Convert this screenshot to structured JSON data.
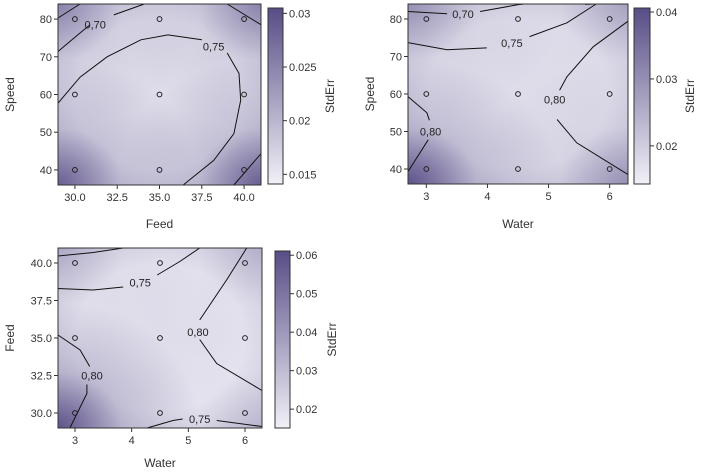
{
  "chart_data": [
    {
      "type": "heatmap",
      "subtype": "contour",
      "xlabel": "Feed",
      "ylabel": "Speed",
      "xlim": [
        29,
        41
      ],
      "ylim": [
        36,
        84
      ],
      "xticks": [
        "30.0",
        "32.5",
        "35.0",
        "37.5",
        "40.0"
      ],
      "xtick_values": [
        30,
        32.5,
        35,
        37.5,
        40
      ],
      "yticks": [
        "40",
        "50",
        "60",
        "70",
        "80"
      ],
      "ytick_values": [
        40,
        50,
        60,
        70,
        80
      ],
      "colorbar": {
        "label": "StdErr",
        "clim": [
          0.0141,
          0.0305
        ],
        "ticks": [
          "0.015",
          "0.02",
          "0.025",
          "0.03"
        ],
        "tick_values": [
          0.015,
          0.02,
          0.025,
          0.03
        ]
      },
      "design_points": [
        [
          30,
          40
        ],
        [
          35,
          40
        ],
        [
          40,
          40
        ],
        [
          30,
          60
        ],
        [
          35,
          60
        ],
        [
          40,
          60
        ],
        [
          30,
          80
        ],
        [
          35,
          80
        ],
        [
          40,
          80
        ]
      ],
      "contours": [
        {
          "level": "0,70",
          "lines": [
            [
              [
                29,
                71.4
              ],
              [
                30.3,
                76.3
              ],
              [
                30.9,
                78.5
              ]
            ],
            [
              [
                32.3,
                81.1
              ],
              [
                34.1,
                84
              ]
            ],
            [
              [
                29,
                80.3
              ],
              [
                30.3,
                84
              ]
            ],
            [
              [
                39,
                84
              ],
              [
                41,
                78.5
              ]
            ],
            [
              [
                39.4,
                36
              ],
              [
                41,
                44.3
              ]
            ]
          ],
          "labels": [
            [
              31.2,
              78.5
            ]
          ]
        },
        {
          "level": "0,75",
          "lines": [
            [
              [
                29,
                57.7
              ],
              [
                30.3,
                64.6
              ],
              [
                31.9,
                70
              ],
              [
                33.9,
                74.5
              ],
              [
                35.5,
                75.8
              ],
              [
                37.5,
                74.5
              ]
            ],
            [
              [
                39,
                71
              ],
              [
                39.7,
                65.6
              ],
              [
                39.8,
                58.5
              ],
              [
                39.4,
                49.6
              ],
              [
                38.2,
                42.5
              ],
              [
                36.4,
                36
              ]
            ]
          ],
          "labels": [
            [
              38.2,
              72.7
            ]
          ]
        }
      ],
      "gradient_colors": {
        "low": "#f1f0f7",
        "high": "#584d86"
      }
    },
    {
      "type": "heatmap",
      "subtype": "contour",
      "xlabel": "Water",
      "ylabel": "Speed",
      "xlim": [
        2.7,
        6.3
      ],
      "ylim": [
        36,
        84
      ],
      "xticks": [
        "3",
        "4",
        "5",
        "6"
      ],
      "xtick_values": [
        3,
        4,
        5,
        6
      ],
      "yticks": [
        "40",
        "50",
        "60",
        "70",
        "80"
      ],
      "ytick_values": [
        40,
        50,
        60,
        70,
        80
      ],
      "colorbar": {
        "label": "StdErr",
        "clim": [
          0.0143,
          0.0406
        ],
        "ticks": [
          "0.02",
          "0.03",
          "0.04"
        ],
        "tick_values": [
          0.02,
          0.03,
          0.04
        ]
      },
      "design_points": [
        [
          3,
          40
        ],
        [
          4.5,
          40
        ],
        [
          6,
          40
        ],
        [
          3,
          60
        ],
        [
          4.5,
          60
        ],
        [
          6,
          60
        ],
        [
          3,
          80
        ],
        [
          4.5,
          80
        ],
        [
          6,
          80
        ]
      ],
      "contours": [
        {
          "level": "0,70",
          "lines": [
            [
              [
                2.7,
                82
              ],
              [
                3.34,
                81.4
              ]
            ],
            [
              [
                3.88,
                82
              ],
              [
                4.49,
                83.8
              ],
              [
                4.6,
                84
              ]
            ],
            [
              [
                5.6,
                83.9
              ],
              [
                5.75,
                84
              ]
            ]
          ],
          "labels": [
            [
              3.6,
              81.4
            ]
          ]
        },
        {
          "level": "0,75",
          "lines": [
            [
              [
                2.7,
                73.7
              ],
              [
                3.34,
                71.8
              ],
              [
                3.99,
                72.3
              ]
            ],
            [
              [
                4.69,
                75.3
              ],
              [
                5.3,
                79
              ],
              [
                5.78,
                84
              ]
            ]
          ],
          "labels": [
            [
              4.4,
              73.6
            ]
          ]
        },
        {
          "level": "0,80",
          "lines": [
            [
              [
                6.3,
                79.4
              ],
              [
                5.73,
                72.6
              ],
              [
                5.3,
                64.6
              ],
              [
                5.18,
                61
              ]
            ],
            [
              [
                5.14,
                53.2
              ],
              [
                5.46,
                47
              ],
              [
                6.3,
                38.5
              ]
            ],
            [
              [
                2.7,
                59.3
              ],
              [
                3.01,
                55
              ],
              [
                3.05,
                53
              ]
            ],
            [
              [
                3.03,
                47.8
              ],
              [
                2.7,
                39.3
              ]
            ]
          ],
          "labels": [
            [
              5.1,
              58.6
            ],
            [
              3.07,
              50
            ]
          ]
        }
      ],
      "gradient_colors": {
        "low": "#f1f0f7",
        "high": "#584d86"
      }
    },
    {
      "type": "heatmap",
      "subtype": "contour",
      "xlabel": "Water",
      "ylabel": "Feed",
      "xlim": [
        2.7,
        6.3
      ],
      "ylim": [
        29,
        41
      ],
      "xticks": [
        "3",
        "4",
        "5",
        "6"
      ],
      "xtick_values": [
        3,
        4,
        5,
        6
      ],
      "yticks": [
        "30.0",
        "32.5",
        "35.0",
        "37.5",
        "40.0"
      ],
      "ytick_values": [
        30,
        32.5,
        35,
        37.5,
        40
      ],
      "colorbar": {
        "label": "StdErr",
        "clim": [
          0.0151,
          0.0611
        ],
        "ticks": [
          "0.02",
          "0.03",
          "0.04",
          "0.05",
          "0.06"
        ],
        "tick_values": [
          0.02,
          0.03,
          0.04,
          0.05,
          0.06
        ]
      },
      "design_points": [
        [
          3,
          30
        ],
        [
          4.5,
          30
        ],
        [
          6,
          30
        ],
        [
          3,
          35
        ],
        [
          4.5,
          35
        ],
        [
          6,
          35
        ],
        [
          3,
          40
        ],
        [
          4.5,
          40
        ],
        [
          6,
          40
        ]
      ],
      "contours": [
        {
          "level": "0,75",
          "lines": [
            [
              [
                2.7,
                40.47
              ],
              [
                3.32,
                40.7
              ],
              [
                3.85,
                41
              ]
            ],
            [
              [
                2.7,
                38.3
              ],
              [
                3.32,
                38.2
              ],
              [
                3.85,
                38.4
              ]
            ],
            [
              [
                4.45,
                39.2
              ],
              [
                4.85,
                40.1
              ],
              [
                5.2,
                41
              ]
            ],
            [
              [
                4.27,
                29
              ],
              [
                4.73,
                29.5
              ],
              [
                4.9,
                29.6
              ]
            ],
            [
              [
                5.5,
                29.5
              ],
              [
                6.3,
                29.1
              ]
            ]
          ],
          "labels": [
            [
              4.15,
              38.7
            ],
            [
              5.2,
              29.6
            ]
          ]
        },
        {
          "level": "0,80",
          "lines": [
            [
              [
                6.03,
                41
              ],
              [
                5.68,
                38.9
              ],
              [
                5.2,
                36.2
              ]
            ],
            [
              [
                5.2,
                34.9
              ],
              [
                5.5,
                33.3
              ],
              [
                6.3,
                31.5
              ]
            ],
            [
              [
                2.7,
                35.2
              ],
              [
                3.09,
                34.2
              ],
              [
                3.26,
                33.1
              ]
            ],
            [
              [
                3.21,
                31.9
              ],
              [
                3.21,
                31.3
              ],
              [
                2.91,
                29
              ]
            ]
          ],
          "labels": [
            [
              5.17,
              35.4
            ],
            [
              3.3,
              32.5
            ]
          ]
        }
      ],
      "gradient_colors": {
        "low": "#f1f0f7",
        "high": "#584d86"
      }
    }
  ]
}
